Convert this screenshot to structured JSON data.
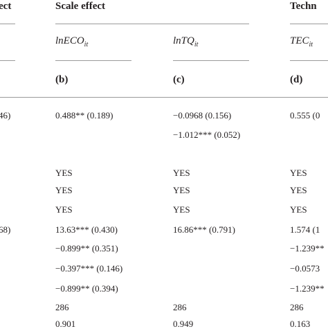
{
  "headers": {
    "prev_fragment": "ect",
    "scale_effect": "Scale effect",
    "tech_fragment": "Techn"
  },
  "columns": {
    "b": {
      "var_main": "lnECO",
      "var_sub": "it",
      "letter": "(b)"
    },
    "c": {
      "var_main": "lnTQ",
      "var_sub": "it",
      "letter": "(c)"
    },
    "d": {
      "var_main": "TEC",
      "var_sub": "it",
      "letter": "(d)"
    }
  },
  "left_cells": {
    "r1": "46)",
    "r7": "68)"
  },
  "rows": {
    "b": [
      "0.488** (0.189)",
      "",
      "YES",
      "YES",
      "YES",
      "13.63*** (0.430)",
      "−0.899** (0.351)",
      "−0.397*** (0.146)",
      "−0.899** (0.394)",
      "286",
      "0.901"
    ],
    "c": [
      "−0.0968 (0.156)",
      "−1.012*** (0.052)",
      "YES",
      "YES",
      "YES",
      "16.86*** (0.791)",
      "",
      "",
      "",
      "286",
      "0.949"
    ],
    "d": [
      "0.555 (0",
      "",
      "YES",
      "YES",
      "YES",
      "1.574 (1",
      "−1.239**",
      "−0.0573",
      "−1.239**",
      "286",
      "0.163"
    ]
  }
}
